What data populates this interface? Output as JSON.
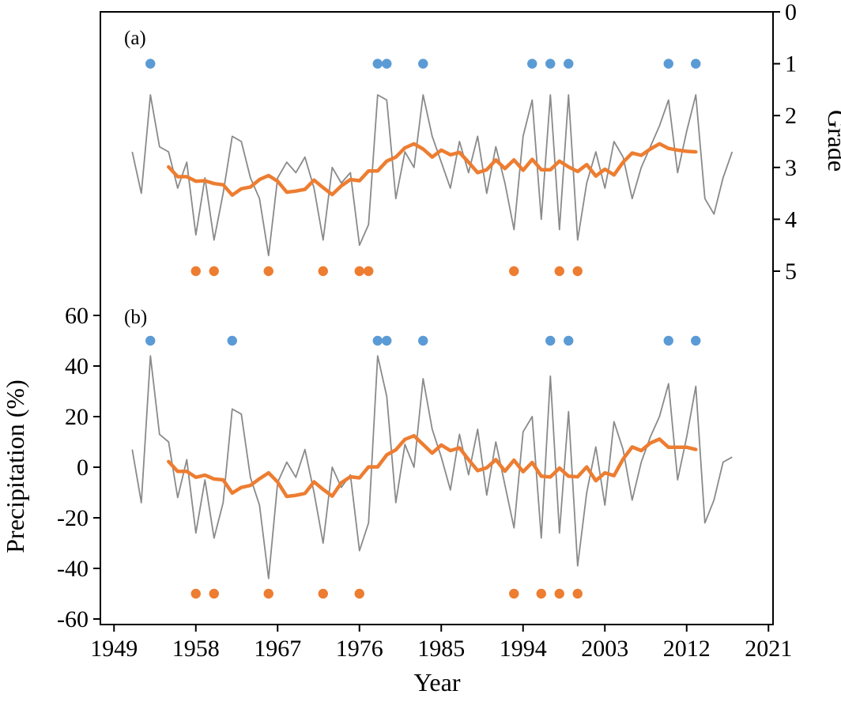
{
  "figure": {
    "xlabel": "Year",
    "ylabel_left": "Precipitation (%)",
    "ylabel_right": "Grade",
    "panels": {
      "a": "(a)",
      "b": "(b)"
    },
    "xticks": [
      1949,
      1958,
      1967,
      1976,
      1985,
      1994,
      2003,
      2012,
      2021
    ]
  },
  "colors": {
    "annual_line": "#8a8a8a",
    "smoothed_line": "#ED7D31",
    "wet_marker": "#5B9BD5",
    "dry_marker": "#ED7D31",
    "axis": "#000000"
  },
  "chart_data": [
    {
      "type": "line",
      "panel": "(a)",
      "ylabel": "Grade",
      "y_axis_side": "right",
      "ylim": [
        0,
        5
      ],
      "y_inverted": true,
      "yticks": [
        0,
        1,
        2,
        3,
        4,
        5
      ],
      "grid": false,
      "x": [
        1951,
        1952,
        1953,
        1954,
        1955,
        1956,
        1957,
        1958,
        1959,
        1960,
        1961,
        1962,
        1963,
        1964,
        1965,
        1966,
        1967,
        1968,
        1969,
        1970,
        1971,
        1972,
        1973,
        1974,
        1975,
        1976,
        1977,
        1978,
        1979,
        1980,
        1981,
        1982,
        1983,
        1984,
        1985,
        1986,
        1987,
        1988,
        1989,
        1990,
        1991,
        1992,
        1993,
        1994,
        1995,
        1996,
        1997,
        1998,
        1999,
        2000,
        2001,
        2002,
        2003,
        2004,
        2005,
        2006,
        2007,
        2008,
        2009,
        2010,
        2011,
        2012,
        2013,
        2014,
        2015,
        2016,
        2017
      ],
      "series": [
        {
          "name": "annual grade",
          "values": [
            2.7,
            3.5,
            1.6,
            2.6,
            2.7,
            3.4,
            2.9,
            4.3,
            3.2,
            4.4,
            3.5,
            2.4,
            2.5,
            3.2,
            3.6,
            4.7,
            3.2,
            2.9,
            3.1,
            2.8,
            3.4,
            4.4,
            3.0,
            3.3,
            3.1,
            4.5,
            4.1,
            1.6,
            1.7,
            3.6,
            2.7,
            3.0,
            1.6,
            2.4,
            2.9,
            3.4,
            2.5,
            3.1,
            2.4,
            3.5,
            2.6,
            3.3,
            4.2,
            2.4,
            1.7,
            4.0,
            1.6,
            4.2,
            1.6,
            4.4,
            3.3,
            2.7,
            3.4,
            2.5,
            2.8,
            3.6,
            3.0,
            2.6,
            2.2,
            1.7,
            3.1,
            2.3,
            1.6,
            3.6,
            3.9,
            3.2,
            2.7
          ]
        },
        {
          "name": "smoothed grade",
          "derived_from": "annual grade",
          "window": 9
        }
      ],
      "markers": {
        "wet_years": {
          "value": 1,
          "years": [
            1953,
            1978,
            1979,
            1983,
            1995,
            1997,
            1999,
            2010,
            2013
          ]
        },
        "dry_years": {
          "value": 5,
          "years": [
            1958,
            1960,
            1966,
            1972,
            1976,
            1977,
            1993,
            1998,
            2000
          ]
        }
      }
    },
    {
      "type": "line",
      "panel": "(b)",
      "ylabel": "Precipitation (%)",
      "y_axis_side": "left",
      "ylim": [
        -60,
        60
      ],
      "y_inverted": false,
      "yticks": [
        60,
        40,
        20,
        0,
        -20,
        -40,
        -60
      ],
      "grid": false,
      "x": [
        1951,
        1952,
        1953,
        1954,
        1955,
        1956,
        1957,
        1958,
        1959,
        1960,
        1961,
        1962,
        1963,
        1964,
        1965,
        1966,
        1967,
        1968,
        1969,
        1970,
        1971,
        1972,
        1973,
        1974,
        1975,
        1976,
        1977,
        1978,
        1979,
        1980,
        1981,
        1982,
        1983,
        1984,
        1985,
        1986,
        1987,
        1988,
        1989,
        1990,
        1991,
        1992,
        1993,
        1994,
        1995,
        1996,
        1997,
        1998,
        1999,
        2000,
        2001,
        2002,
        2003,
        2004,
        2005,
        2006,
        2007,
        2008,
        2009,
        2010,
        2011,
        2012,
        2013,
        2014,
        2015,
        2016,
        2017
      ],
      "series": [
        {
          "name": "annual precipitation anomaly",
          "values": [
            7,
            -14,
            44,
            13,
            10,
            -12,
            3,
            -26,
            -5,
            -28,
            -14,
            23,
            21,
            -4,
            -15,
            -44,
            -6,
            2,
            -4,
            7,
            -10,
            -30,
            0,
            -8,
            -3,
            -33,
            -22,
            44,
            28,
            -14,
            9,
            0,
            35,
            15,
            4,
            -9,
            13,
            -3,
            15,
            -11,
            10,
            -7,
            -24,
            14,
            20,
            -28,
            36,
            -26,
            22,
            -39,
            -10,
            8,
            -15,
            18,
            7,
            -13,
            2,
            12,
            20,
            33,
            -5,
            12,
            32,
            -22,
            -13,
            2,
            4
          ]
        },
        {
          "name": "smoothed precipitation anomaly",
          "derived_from": "annual precipitation anomaly",
          "window": 9
        }
      ],
      "markers": {
        "wet_years": {
          "value": 50,
          "years": [
            1953,
            1962,
            1978,
            1979,
            1983,
            1997,
            1999,
            2010,
            2013
          ]
        },
        "dry_years": {
          "value": -50,
          "years": [
            1958,
            1960,
            1966,
            1972,
            1976,
            1993,
            1996,
            1998,
            2000
          ]
        }
      }
    }
  ]
}
